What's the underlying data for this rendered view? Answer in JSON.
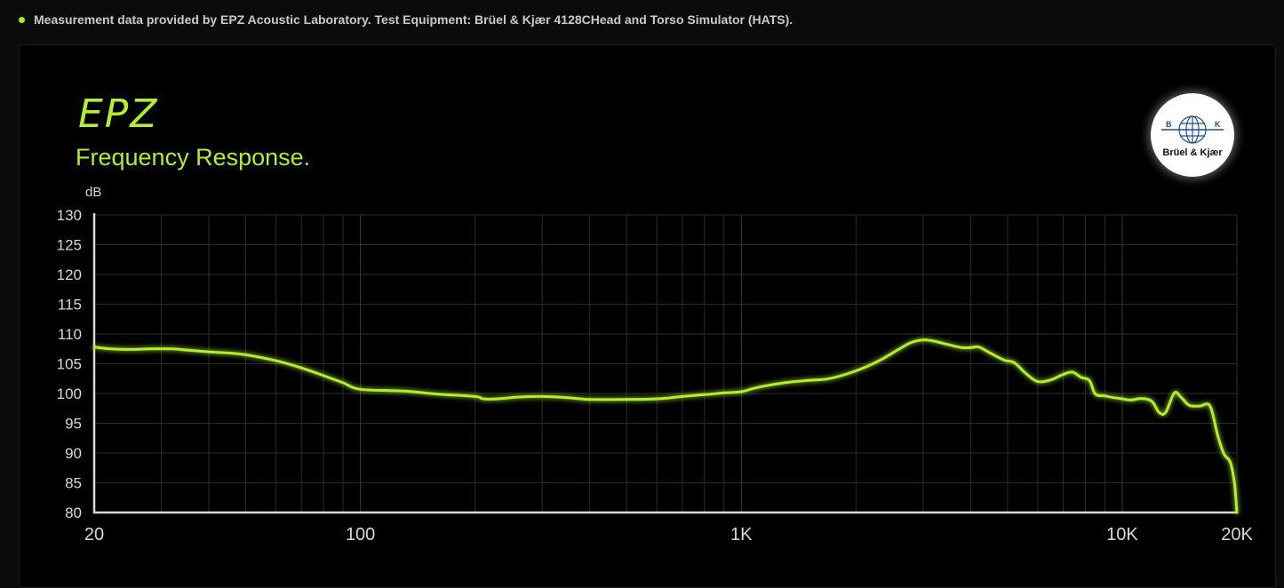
{
  "header_note": "Measurement data provided by EPZ Acoustic Laboratory. Test Equipment: Brüel & Kjær 4128CHead and Torso Simulator (HATS).",
  "brand": "EPZ",
  "logo_text": "Brüel & Kjær",
  "logo_letters": [
    "B",
    "K"
  ],
  "colors": {
    "accent": "#b2ee2e",
    "background": "#000000",
    "grid": "#2b2b2b",
    "axis": "#d8d8d8"
  },
  "chart_data": {
    "type": "line",
    "title": "Frequency Response.",
    "ylabel": "dB",
    "xlabel": "",
    "x_scale": "log",
    "xlim": [
      20,
      20000
    ],
    "ylim": [
      80,
      130
    ],
    "x_ticks": [
      {
        "value": 20,
        "label": "20"
      },
      {
        "value": 100,
        "label": "100"
      },
      {
        "value": 1000,
        "label": "1K"
      },
      {
        "value": 10000,
        "label": "10K"
      },
      {
        "value": 20000,
        "label": "20K"
      }
    ],
    "y_ticks": [
      {
        "value": 130,
        "label": "130"
      },
      {
        "value": 125,
        "label": "125"
      },
      {
        "value": 120,
        "label": "120"
      },
      {
        "value": 115,
        "label": "115"
      },
      {
        "value": 110,
        "label": "110"
      },
      {
        "value": 105,
        "label": "105"
      },
      {
        "value": 100,
        "label": "100"
      },
      {
        "value": 95,
        "label": "95"
      },
      {
        "value": 90,
        "label": "90"
      },
      {
        "value": 85,
        "label": "85"
      },
      {
        "value": 80,
        "label": "80"
      }
    ],
    "grid": true,
    "legend": "none",
    "series": [
      {
        "color": "#b2ee2e",
        "x": [
          20,
          22,
          25,
          28,
          32,
          35,
          40,
          45,
          50,
          60,
          70,
          80,
          90,
          100,
          130,
          160,
          200,
          210,
          230,
          260,
          300,
          350,
          400,
          500,
          600,
          700,
          800,
          900,
          1000,
          1100,
          1300,
          1500,
          1700,
          2000,
          2300,
          2600,
          2800,
          3000,
          3200,
          3500,
          3800,
          4000,
          4200,
          4500,
          4900,
          5200,
          5600,
          6000,
          6500,
          7000,
          7400,
          7800,
          8200,
          8500,
          9000,
          9500,
          10000,
          10500,
          11000,
          11500,
          12000,
          12500,
          13000,
          13700,
          14300,
          15000,
          16000,
          17000,
          17800,
          18500,
          19200,
          19700,
          20000
        ],
        "y": [
          107.8,
          107.5,
          107.4,
          107.5,
          107.5,
          107.3,
          107.0,
          106.8,
          106.5,
          105.5,
          104.3,
          103.0,
          101.8,
          100.7,
          100.4,
          99.9,
          99.5,
          99.1,
          99.1,
          99.4,
          99.5,
          99.3,
          99.0,
          99.0,
          99.1,
          99.5,
          99.8,
          100.1,
          100.3,
          101.0,
          101.8,
          102.2,
          102.5,
          103.8,
          105.5,
          107.5,
          108.6,
          109.0,
          108.8,
          108.2,
          107.7,
          107.7,
          107.8,
          106.8,
          105.6,
          105.2,
          103.3,
          102.0,
          102.3,
          103.2,
          103.6,
          102.7,
          102.2,
          99.9,
          99.6,
          99.3,
          99.1,
          98.9,
          99.1,
          99.1,
          98.6,
          96.8,
          96.8,
          100.1,
          99.3,
          98.0,
          97.9,
          97.9,
          93.0,
          89.8,
          88.5,
          85.0,
          80.0
        ]
      }
    ]
  }
}
